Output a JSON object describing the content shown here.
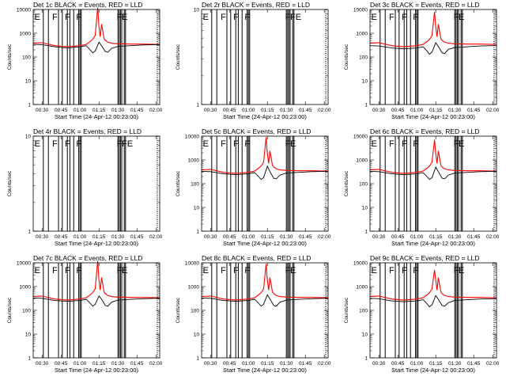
{
  "panel_titles": [
    "Det 1c BLACK = Events, RED = LLD",
    "Det 2r BLACK = Events, RED = LLD",
    "Det 3c BLACK = Events, RED = LLD",
    "Det 4r BLACK = Events, RED = LLD",
    "Det 5c BLACK = Events, RED = LLD",
    "Det 6c BLACK = Events, RED = LLD",
    "Det 7c BLACK = Events, RED = LLD",
    "Det 8c BLACK = Events, RED = LLD",
    "Det 9c BLACK = Events, RED = LLD"
  ],
  "ylabel": "Counts/sec",
  "xlabel": "Start Time (24-Apr-12 00:23:00)",
  "x_ticks": [
    "00:30",
    "00:45",
    "01:00",
    "01:15",
    "01:30",
    "01:45",
    "02:00"
  ],
  "colors": {
    "events": "#000000",
    "lld": "#ff0000"
  },
  "chart_data": [
    {
      "panel": "Det 1c",
      "type": "line",
      "yscale": "log",
      "ylim": [
        1,
        10000
      ],
      "xlim": [
        "00:23",
        "02:03"
      ],
      "y_ticks": [
        "1",
        "10",
        "100",
        "1000",
        "10000"
      ],
      "series": [
        {
          "name": "Events",
          "color": "#000000",
          "x": [
            "00:23",
            "00:30",
            "00:40",
            "00:50",
            "01:00",
            "01:05",
            "01:08",
            "01:10",
            "01:12",
            "01:15",
            "01:17",
            "01:20",
            "01:22",
            "01:25",
            "01:30",
            "01:40",
            "01:50",
            "02:00",
            "02:03"
          ],
          "y": [
            340,
            330,
            270,
            240,
            270,
            300,
            200,
            150,
            180,
            420,
            300,
            170,
            160,
            230,
            280,
            300,
            320,
            330,
            330
          ]
        },
        {
          "name": "LLD",
          "color": "#ff0000",
          "x": [
            "00:23",
            "00:30",
            "00:40",
            "00:50",
            "01:00",
            "01:05",
            "01:08",
            "01:10",
            "01:12",
            "01:14",
            "01:15",
            "01:16",
            "01:17",
            "01:19",
            "01:20",
            "01:22",
            "01:25",
            "01:30",
            "01:40",
            "01:50",
            "02:00",
            "02:03"
          ],
          "y": [
            380,
            400,
            300,
            270,
            300,
            340,
            450,
            550,
            800,
            12000,
            1800,
            700,
            2400,
            600,
            500,
            420,
            380,
            360,
            350,
            350,
            340,
            340
          ]
        }
      ],
      "annotations": [
        "E",
        "F",
        "F",
        "F",
        "F",
        "E"
      ],
      "event_lines": [
        "00:31",
        "00:35",
        "00:43",
        "00:46",
        "00:50",
        "00:52",
        "00:55",
        "00:59",
        "01:00",
        "01:01",
        "01:30",
        "01:31",
        "01:32",
        "01:33",
        "01:35",
        "01:36"
      ]
    },
    {
      "panel": "Det 2r",
      "type": "line",
      "yscale": "log",
      "ylim": [
        1,
        10
      ],
      "xlim": [
        "00:23",
        "02:03"
      ],
      "y_ticks": [
        "1",
        "10"
      ],
      "series": [],
      "annotations": [
        "E",
        "F",
        "F",
        "F",
        "F",
        "FE"
      ],
      "event_lines": [
        "00:31",
        "00:35",
        "00:43",
        "00:46",
        "00:50",
        "00:52",
        "00:55",
        "00:59",
        "01:00",
        "01:01",
        "01:30",
        "01:31",
        "01:32",
        "01:33",
        "01:35",
        "01:36"
      ]
    },
    {
      "panel": "Det 3c",
      "type": "line",
      "yscale": "log",
      "ylim": [
        1,
        10000
      ],
      "xlim": [
        "00:23",
        "02:03"
      ],
      "y_ticks": [
        "1",
        "10",
        "100",
        "1000",
        "10000"
      ],
      "series": [
        {
          "name": "Events",
          "color": "#000000",
          "x": [
            "00:23",
            "00:30",
            "00:40",
            "00:50",
            "01:00",
            "01:05",
            "01:08",
            "01:10",
            "01:12",
            "01:15",
            "01:17",
            "01:20",
            "01:22",
            "01:25",
            "01:30",
            "01:40",
            "01:50",
            "02:00",
            "02:03"
          ],
          "y": [
            300,
            290,
            240,
            220,
            240,
            270,
            180,
            130,
            160,
            400,
            280,
            150,
            140,
            210,
            250,
            270,
            290,
            300,
            300
          ]
        },
        {
          "name": "LLD",
          "color": "#ff0000",
          "x": [
            "00:23",
            "00:30",
            "00:40",
            "00:50",
            "01:00",
            "01:05",
            "01:08",
            "01:10",
            "01:12",
            "01:14",
            "01:15",
            "01:16",
            "01:17",
            "01:19",
            "01:20",
            "01:22",
            "01:25",
            "01:30",
            "01:40",
            "01:50",
            "02:00",
            "02:03"
          ],
          "y": [
            380,
            400,
            300,
            270,
            300,
            340,
            450,
            550,
            800,
            8000,
            1800,
            700,
            2400,
            600,
            500,
            420,
            380,
            360,
            350,
            350,
            340,
            340
          ]
        }
      ],
      "annotations": [
        "E",
        "F",
        "F",
        "F",
        "F",
        "E"
      ],
      "event_lines": [
        "00:31",
        "00:35",
        "00:43",
        "00:46",
        "00:50",
        "00:52",
        "00:55",
        "00:59",
        "01:00",
        "01:01",
        "01:30",
        "01:31",
        "01:32",
        "01:33",
        "01:35",
        "01:36"
      ]
    },
    {
      "panel": "Det 4r",
      "type": "line",
      "yscale": "log",
      "ylim": [
        1,
        10
      ],
      "xlim": [
        "00:23",
        "02:03"
      ],
      "y_ticks": [
        "1",
        "10"
      ],
      "series": [],
      "annotations": [
        "E",
        "F",
        "F",
        "F",
        "F",
        "FE"
      ],
      "event_lines": [
        "00:31",
        "00:35",
        "00:43",
        "00:46",
        "00:50",
        "00:52",
        "00:55",
        "00:59",
        "01:00",
        "01:01",
        "01:30",
        "01:31",
        "01:32",
        "01:33",
        "01:35",
        "01:36"
      ]
    },
    {
      "panel": "Det 5c",
      "type": "line",
      "yscale": "log",
      "ylim": [
        1,
        10000
      ],
      "xlim": [
        "00:23",
        "02:03"
      ],
      "y_ticks": [
        "1",
        "10",
        "100",
        "1000",
        "10000"
      ],
      "series": [
        {
          "name": "Events",
          "color": "#000000",
          "x": [
            "00:23",
            "00:30",
            "00:40",
            "00:50",
            "01:00",
            "01:05",
            "01:08",
            "01:10",
            "01:12",
            "01:15",
            "01:17",
            "01:20",
            "01:22",
            "01:25",
            "01:30",
            "01:40",
            "01:50",
            "02:00",
            "02:03"
          ],
          "y": [
            330,
            320,
            260,
            240,
            260,
            290,
            200,
            150,
            180,
            550,
            320,
            170,
            160,
            230,
            280,
            300,
            320,
            330,
            330
          ]
        },
        {
          "name": "LLD",
          "color": "#ff0000",
          "x": [
            "00:23",
            "00:30",
            "00:40",
            "00:50",
            "01:00",
            "01:05",
            "01:08",
            "01:10",
            "01:12",
            "01:14",
            "01:15",
            "01:16",
            "01:17",
            "01:19",
            "01:20",
            "01:22",
            "01:25",
            "01:30",
            "01:40",
            "01:50",
            "02:00",
            "02:03"
          ],
          "y": [
            380,
            400,
            300,
            270,
            300,
            340,
            450,
            550,
            800,
            9000,
            1800,
            700,
            2400,
            600,
            500,
            420,
            380,
            360,
            350,
            350,
            340,
            340
          ]
        }
      ],
      "annotations": [
        "E",
        "F",
        "F",
        "F",
        "F",
        "E"
      ],
      "event_lines": [
        "00:31",
        "00:35",
        "00:43",
        "00:46",
        "00:50",
        "00:52",
        "00:55",
        "00:59",
        "01:00",
        "01:01",
        "01:30",
        "01:31",
        "01:32",
        "01:33",
        "01:35",
        "01:36"
      ]
    },
    {
      "panel": "Det 6c",
      "type": "line",
      "yscale": "log",
      "ylim": [
        1,
        10000
      ],
      "xlim": [
        "00:23",
        "02:03"
      ],
      "y_ticks": [
        "1",
        "10",
        "100",
        "1000",
        "10000"
      ],
      "series": [
        {
          "name": "Events",
          "color": "#000000",
          "x": [
            "00:23",
            "00:30",
            "00:40",
            "00:50",
            "01:00",
            "01:05",
            "01:08",
            "01:10",
            "01:12",
            "01:15",
            "01:17",
            "01:20",
            "01:22",
            "01:25",
            "01:30",
            "01:40",
            "01:50",
            "02:00",
            "02:03"
          ],
          "y": [
            330,
            320,
            260,
            240,
            260,
            290,
            200,
            150,
            180,
            500,
            320,
            170,
            160,
            230,
            280,
            300,
            320,
            330,
            330
          ]
        },
        {
          "name": "LLD",
          "color": "#ff0000",
          "x": [
            "00:23",
            "00:30",
            "00:40",
            "00:50",
            "01:00",
            "01:05",
            "01:08",
            "01:10",
            "01:12",
            "01:14",
            "01:15",
            "01:16",
            "01:17",
            "01:19",
            "01:20",
            "01:22",
            "01:25",
            "01:30",
            "01:40",
            "01:50",
            "02:00",
            "02:03"
          ],
          "y": [
            380,
            400,
            300,
            270,
            300,
            340,
            450,
            550,
            800,
            7000,
            1800,
            700,
            2400,
            600,
            500,
            420,
            380,
            360,
            350,
            350,
            340,
            340
          ]
        }
      ],
      "annotations": [
        "E",
        "F",
        "F",
        "F",
        "F",
        "E"
      ],
      "event_lines": [
        "00:31",
        "00:35",
        "00:43",
        "00:46",
        "00:50",
        "00:52",
        "00:55",
        "00:59",
        "01:00",
        "01:01",
        "01:30",
        "01:31",
        "01:32",
        "01:33",
        "01:35",
        "01:36"
      ]
    },
    {
      "panel": "Det 7c",
      "type": "line",
      "yscale": "log",
      "ylim": [
        1,
        10000
      ],
      "xlim": [
        "00:23",
        "02:03"
      ],
      "y_ticks": [
        "1",
        "10",
        "100",
        "1000",
        "10000"
      ],
      "series": [
        {
          "name": "Events",
          "color": "#000000",
          "x": [
            "00:23",
            "00:30",
            "00:40",
            "00:50",
            "01:00",
            "01:05",
            "01:08",
            "01:10",
            "01:12",
            "01:15",
            "01:17",
            "01:20",
            "01:22",
            "01:25",
            "01:30",
            "01:40",
            "01:50",
            "02:00",
            "02:03"
          ],
          "y": [
            330,
            320,
            260,
            240,
            260,
            290,
            200,
            150,
            180,
            400,
            300,
            160,
            150,
            220,
            270,
            290,
            310,
            320,
            320
          ]
        },
        {
          "name": "LLD",
          "color": "#ff0000",
          "x": [
            "00:23",
            "00:30",
            "00:40",
            "00:50",
            "01:00",
            "01:05",
            "01:08",
            "01:10",
            "01:12",
            "01:14",
            "01:15",
            "01:16",
            "01:17",
            "01:19",
            "01:20",
            "01:22",
            "01:25",
            "01:30",
            "01:40",
            "01:50",
            "02:00",
            "02:03"
          ],
          "y": [
            380,
            400,
            300,
            270,
            300,
            340,
            450,
            550,
            800,
            12000,
            1800,
            700,
            2400,
            600,
            500,
            420,
            380,
            360,
            350,
            350,
            340,
            340
          ]
        }
      ],
      "annotations": [
        "E",
        "F",
        "F",
        "F",
        "F",
        "E"
      ],
      "event_lines": [
        "00:31",
        "00:35",
        "00:43",
        "00:46",
        "00:50",
        "00:52",
        "00:55",
        "00:59",
        "01:00",
        "01:01",
        "01:30",
        "01:31",
        "01:32",
        "01:33",
        "01:35",
        "01:36"
      ]
    },
    {
      "panel": "Det 8c",
      "type": "line",
      "yscale": "log",
      "ylim": [
        1,
        10000
      ],
      "xlim": [
        "00:23",
        "02:03"
      ],
      "y_ticks": [
        "1",
        "10",
        "100",
        "1000",
        "10000"
      ],
      "series": [
        {
          "name": "Events",
          "color": "#000000",
          "x": [
            "00:23",
            "00:30",
            "00:40",
            "00:50",
            "01:00",
            "01:05",
            "01:08",
            "01:10",
            "01:12",
            "01:15",
            "01:17",
            "01:20",
            "01:22",
            "01:25",
            "01:30",
            "01:40",
            "01:50",
            "02:00",
            "02:03"
          ],
          "y": [
            330,
            320,
            260,
            240,
            260,
            290,
            200,
            150,
            180,
            450,
            300,
            160,
            150,
            220,
            270,
            290,
            310,
            320,
            320
          ]
        },
        {
          "name": "LLD",
          "color": "#ff0000",
          "x": [
            "00:23",
            "00:30",
            "00:40",
            "00:50",
            "01:00",
            "01:05",
            "01:08",
            "01:10",
            "01:12",
            "01:14",
            "01:15",
            "01:16",
            "01:17",
            "01:19",
            "01:20",
            "01:22",
            "01:25",
            "01:30",
            "01:40",
            "01:50",
            "02:00",
            "02:03"
          ],
          "y": [
            380,
            400,
            300,
            270,
            300,
            340,
            450,
            550,
            800,
            9000,
            1800,
            700,
            2400,
            600,
            500,
            420,
            380,
            360,
            350,
            350,
            340,
            340
          ]
        }
      ],
      "annotations": [
        "E",
        "F",
        "F",
        "F",
        "F",
        "E"
      ],
      "event_lines": [
        "00:31",
        "00:35",
        "00:43",
        "00:46",
        "00:50",
        "00:52",
        "00:55",
        "00:59",
        "01:00",
        "01:01",
        "01:30",
        "01:31",
        "01:32",
        "01:33",
        "01:35",
        "01:36"
      ]
    },
    {
      "panel": "Det 9c",
      "type": "line",
      "yscale": "log",
      "ylim": [
        1,
        10000
      ],
      "xlim": [
        "00:23",
        "02:03"
      ],
      "y_ticks": [
        "1",
        "10",
        "100",
        "1000",
        "10000"
      ],
      "series": [
        {
          "name": "Events",
          "color": "#000000",
          "x": [
            "00:23",
            "00:30",
            "00:40",
            "00:50",
            "01:00",
            "01:05",
            "01:08",
            "01:10",
            "01:12",
            "01:15",
            "01:17",
            "01:20",
            "01:22",
            "01:25",
            "01:30",
            "01:40",
            "01:50",
            "02:00",
            "02:03"
          ],
          "y": [
            320,
            310,
            250,
            230,
            250,
            280,
            190,
            140,
            170,
            420,
            290,
            160,
            150,
            210,
            260,
            280,
            300,
            310,
            310
          ]
        },
        {
          "name": "LLD",
          "color": "#ff0000",
          "x": [
            "00:23",
            "00:30",
            "00:40",
            "00:50",
            "01:00",
            "01:05",
            "01:08",
            "01:10",
            "01:12",
            "01:14",
            "01:15",
            "01:16",
            "01:17",
            "01:19",
            "01:20",
            "01:22",
            "01:25",
            "01:30",
            "01:40",
            "01:50",
            "02:00",
            "02:03"
          ],
          "y": [
            380,
            400,
            300,
            270,
            300,
            340,
            450,
            550,
            800,
            5000,
            1800,
            700,
            2400,
            600,
            500,
            420,
            380,
            360,
            350,
            350,
            340,
            340
          ]
        }
      ],
      "annotations": [
        "E",
        "F",
        "F",
        "F",
        "F",
        "E"
      ],
      "event_lines": [
        "00:31",
        "00:35",
        "00:43",
        "00:46",
        "00:50",
        "00:52",
        "00:55",
        "00:59",
        "01:00",
        "01:01",
        "01:30",
        "01:31",
        "01:32",
        "01:33",
        "01:35",
        "01:36"
      ]
    }
  ]
}
